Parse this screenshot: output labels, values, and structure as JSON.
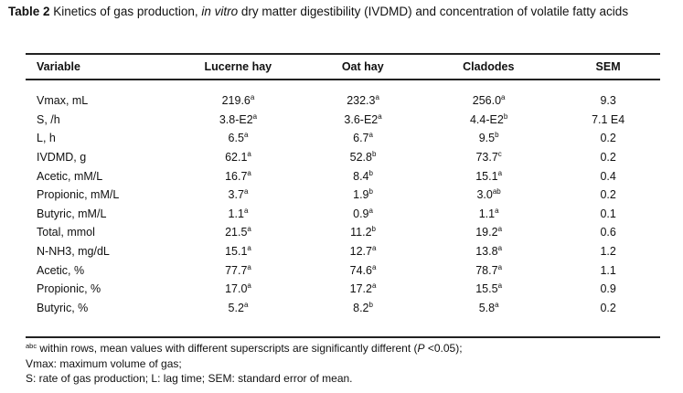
{
  "caption": {
    "label": "Table 2",
    "text_part1": " Kinetics of gas production, ",
    "text_italic": "in vitro",
    "text_part2": " dry matter digestibility (IVDMD) and concentration of volatile fatty acids"
  },
  "table": {
    "headers": [
      "Variable",
      "Lucerne hay",
      "Oat hay",
      "Cladodes",
      "SEM"
    ],
    "rows": [
      {
        "variable": "Vmax, mL",
        "cells": [
          [
            "219.6",
            "a"
          ],
          [
            "232.3",
            "a"
          ],
          [
            "256.0",
            "a"
          ]
        ],
        "sem": "9.3"
      },
      {
        "variable": "S, /h",
        "cells": [
          [
            "3.8-E2",
            "a"
          ],
          [
            "3.6-E2",
            "a"
          ],
          [
            "4.4-E2",
            "b"
          ]
        ],
        "sem": "7.1 E4"
      },
      {
        "variable": "L, h",
        "cells": [
          [
            "6.5",
            "a"
          ],
          [
            "6.7",
            "a"
          ],
          [
            "9.5",
            "b"
          ]
        ],
        "sem": "0.2"
      },
      {
        "variable": "IVDMD, g",
        "cells": [
          [
            "62.1",
            "a"
          ],
          [
            "52.8",
            "b"
          ],
          [
            "73.7",
            "c"
          ]
        ],
        "sem": "0.2"
      },
      {
        "variable": "Acetic, mM/L",
        "cells": [
          [
            "16.7",
            "a"
          ],
          [
            "8.4",
            "b"
          ],
          [
            "15.1",
            "a"
          ]
        ],
        "sem": "0.4"
      },
      {
        "variable": "Propionic, mM/L",
        "cells": [
          [
            "3.7",
            "a"
          ],
          [
            "1.9",
            "b"
          ],
          [
            "3.0",
            "ab"
          ]
        ],
        "sem": "0.2"
      },
      {
        "variable": "Butyric, mM/L",
        "cells": [
          [
            "1.1",
            "a"
          ],
          [
            "0.9",
            "a"
          ],
          [
            "1.1",
            "a"
          ]
        ],
        "sem": "0.1"
      },
      {
        "variable": "Total, mmol",
        "cells": [
          [
            "21.5",
            "a"
          ],
          [
            "11.2",
            "b"
          ],
          [
            "19.2",
            "a"
          ]
        ],
        "sem": "0.6"
      },
      {
        "variable": "N-NH3, mg/dL",
        "cells": [
          [
            "15.1",
            "a"
          ],
          [
            "12.7",
            "a"
          ],
          [
            "13.8",
            "a"
          ]
        ],
        "sem": "1.2"
      },
      {
        "variable": "Acetic, %",
        "cells": [
          [
            "77.7",
            "a"
          ],
          [
            "74.6",
            "a"
          ],
          [
            "78.7",
            "a"
          ]
        ],
        "sem": "1.1"
      },
      {
        "variable": "Propionic, %",
        "cells": [
          [
            "17.0",
            "a"
          ],
          [
            "17.2",
            "a"
          ],
          [
            "15.5",
            "a"
          ]
        ],
        "sem": "0.9"
      },
      {
        "variable": "Butyric, %",
        "cells": [
          [
            "5.2",
            "a"
          ],
          [
            "8.2",
            "b"
          ],
          [
            "5.8",
            "a"
          ]
        ],
        "sem": "0.2"
      }
    ]
  },
  "footnote": {
    "sup": "abc",
    "line1_a": " within rows, mean values with different superscripts are significantly different (",
    "line1_italic": "P",
    "line1_b": " <0.05);",
    "line2": "Vmax: maximum volume of gas;",
    "line3": "S: rate of gas production; L: lag time; SEM: standard error of mean."
  }
}
